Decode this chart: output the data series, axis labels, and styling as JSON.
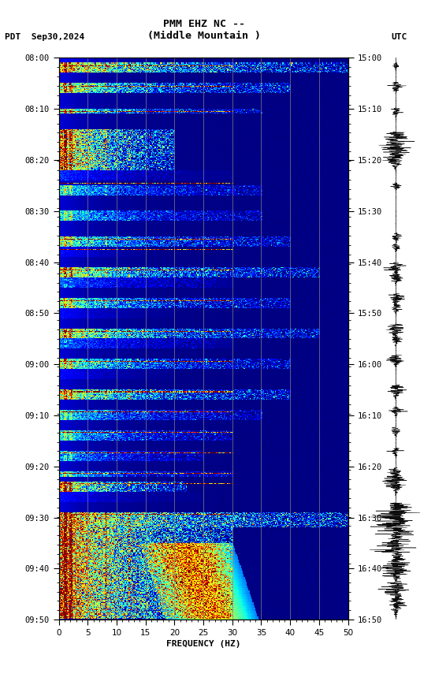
{
  "title_line1": "PMM EHZ NC --",
  "title_line2": "(Middle Mountain )",
  "date_label": "PDT  Sep30,2024",
  "utc_label": "UTC",
  "xlabel": "FREQUENCY (HZ)",
  "freq_min": 0,
  "freq_max": 50,
  "ytick_pdt": [
    "08:00",
    "08:10",
    "08:20",
    "08:30",
    "08:40",
    "08:50",
    "09:00",
    "09:10",
    "09:20",
    "09:30",
    "09:40",
    "09:50"
  ],
  "ytick_utc": [
    "15:00",
    "15:10",
    "15:20",
    "15:30",
    "15:40",
    "15:50",
    "16:00",
    "16:10",
    "16:20",
    "16:30",
    "16:40",
    "16:50"
  ],
  "xticks": [
    0,
    5,
    10,
    15,
    20,
    25,
    30,
    35,
    40,
    45,
    50
  ],
  "vline_freqs": [
    5,
    10,
    15,
    20,
    25,
    30,
    35,
    40,
    45
  ],
  "fig_width": 5.52,
  "fig_height": 8.64,
  "background_color": "#ffffff",
  "font_family": "monospace",
  "n_times": 660,
  "n_freqs": 300
}
